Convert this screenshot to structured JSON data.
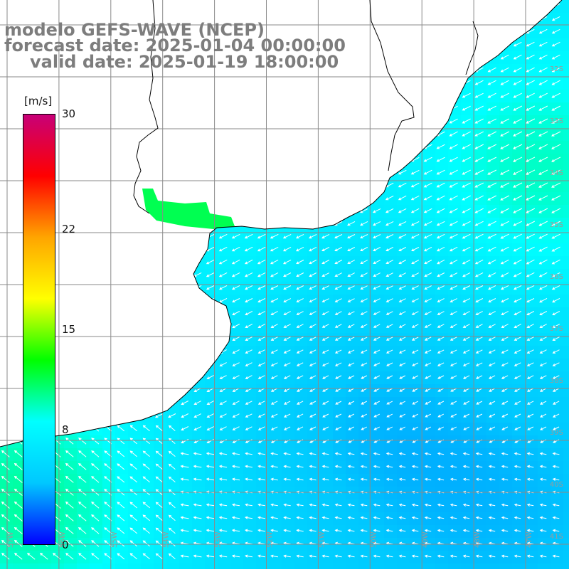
{
  "title": {
    "line1": "modelo GEFS-WAVE (NCEP)",
    "line2": "forecast date: 2025-01-04 00:00:00",
    "line3": "valid date: 2025-01-19 18:00:00"
  },
  "colorbar": {
    "unit": "[m/s]",
    "min": 0,
    "max": 30,
    "tick_labels": [
      "30",
      "22",
      "15",
      "8",
      "0"
    ],
    "tick_values": [
      30,
      22,
      15,
      8,
      0
    ],
    "color_stops": [
      "#0000ff",
      "#00c8ff",
      "#00ffff",
      "#00ff00",
      "#ffff00",
      "#ffa500",
      "#ff0000",
      "#c80078"
    ]
  },
  "map": {
    "lat_labels": [
      "32S",
      "33S",
      "34S",
      "35S",
      "36S",
      "37S",
      "38S",
      "39S",
      "40S",
      "41S"
    ],
    "lon_labels": [
      "57W",
      "56W",
      "55W",
      "54W",
      "53W",
      "52W",
      "51W",
      "50W",
      "49W",
      "48W",
      "47W"
    ],
    "grid": true,
    "field": "wind speed",
    "units": "m/s",
    "land_color": "#ffffff",
    "coastline_color": "#000000",
    "arrow_color": "#ffffff"
  }
}
